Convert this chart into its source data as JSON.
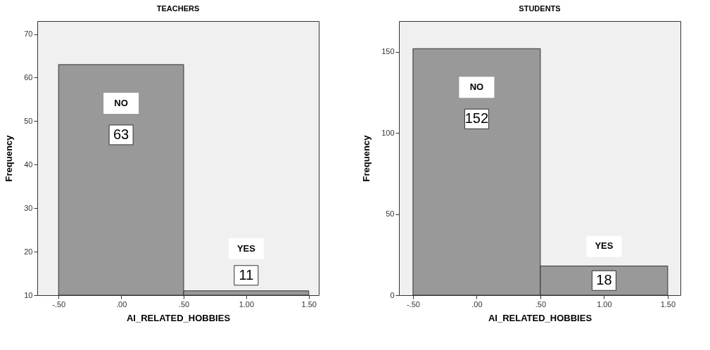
{
  "chart_data": [
    {
      "type": "histogram",
      "title": "TEACHERS",
      "xlabel": "AI_RELATED_HOBBIES",
      "ylabel": "Frequency",
      "bins": [
        -0.5,
        0.5,
        1.5
      ],
      "values": [
        63,
        11
      ],
      "color": "#999999",
      "data_labels": true,
      "xlim": [
        -0.67,
        1.58
      ],
      "ylim": [
        10,
        73
      ],
      "xticks": [
        {
          "value": -0.5,
          "label": "-.50"
        },
        {
          "value": 0,
          "label": ".00"
        },
        {
          "value": 0.5,
          "label": ".50"
        },
        {
          "value": 1,
          "label": "1.00"
        },
        {
          "value": 1.5,
          "label": "1.50"
        }
      ],
      "yticks": [
        10,
        20,
        30,
        40,
        50,
        60,
        70
      ],
      "grid": false,
      "annotations": [
        "NO",
        "YES"
      ]
    },
    {
      "type": "histogram",
      "title": "STUDENTS",
      "xlabel": "AI_RELATED_HOBBIES",
      "ylabel": "Frequency",
      "bins": [
        -0.5,
        0.5,
        1.5
      ],
      "values": [
        152,
        18
      ],
      "color": "#999999",
      "data_labels": true,
      "xlim": [
        -0.61,
        1.6
      ],
      "ylim": [
        0,
        169
      ],
      "xticks": [
        {
          "value": -0.5,
          "label": "-.50"
        },
        {
          "value": 0,
          "label": ".00"
        },
        {
          "value": 0.5,
          "label": ".50"
        },
        {
          "value": 1,
          "label": "1.00"
        },
        {
          "value": 1.5,
          "label": "1.50"
        }
      ],
      "yticks": [
        0,
        50,
        100,
        150
      ],
      "grid": false,
      "annotations": [
        "NO",
        "YES"
      ]
    }
  ]
}
